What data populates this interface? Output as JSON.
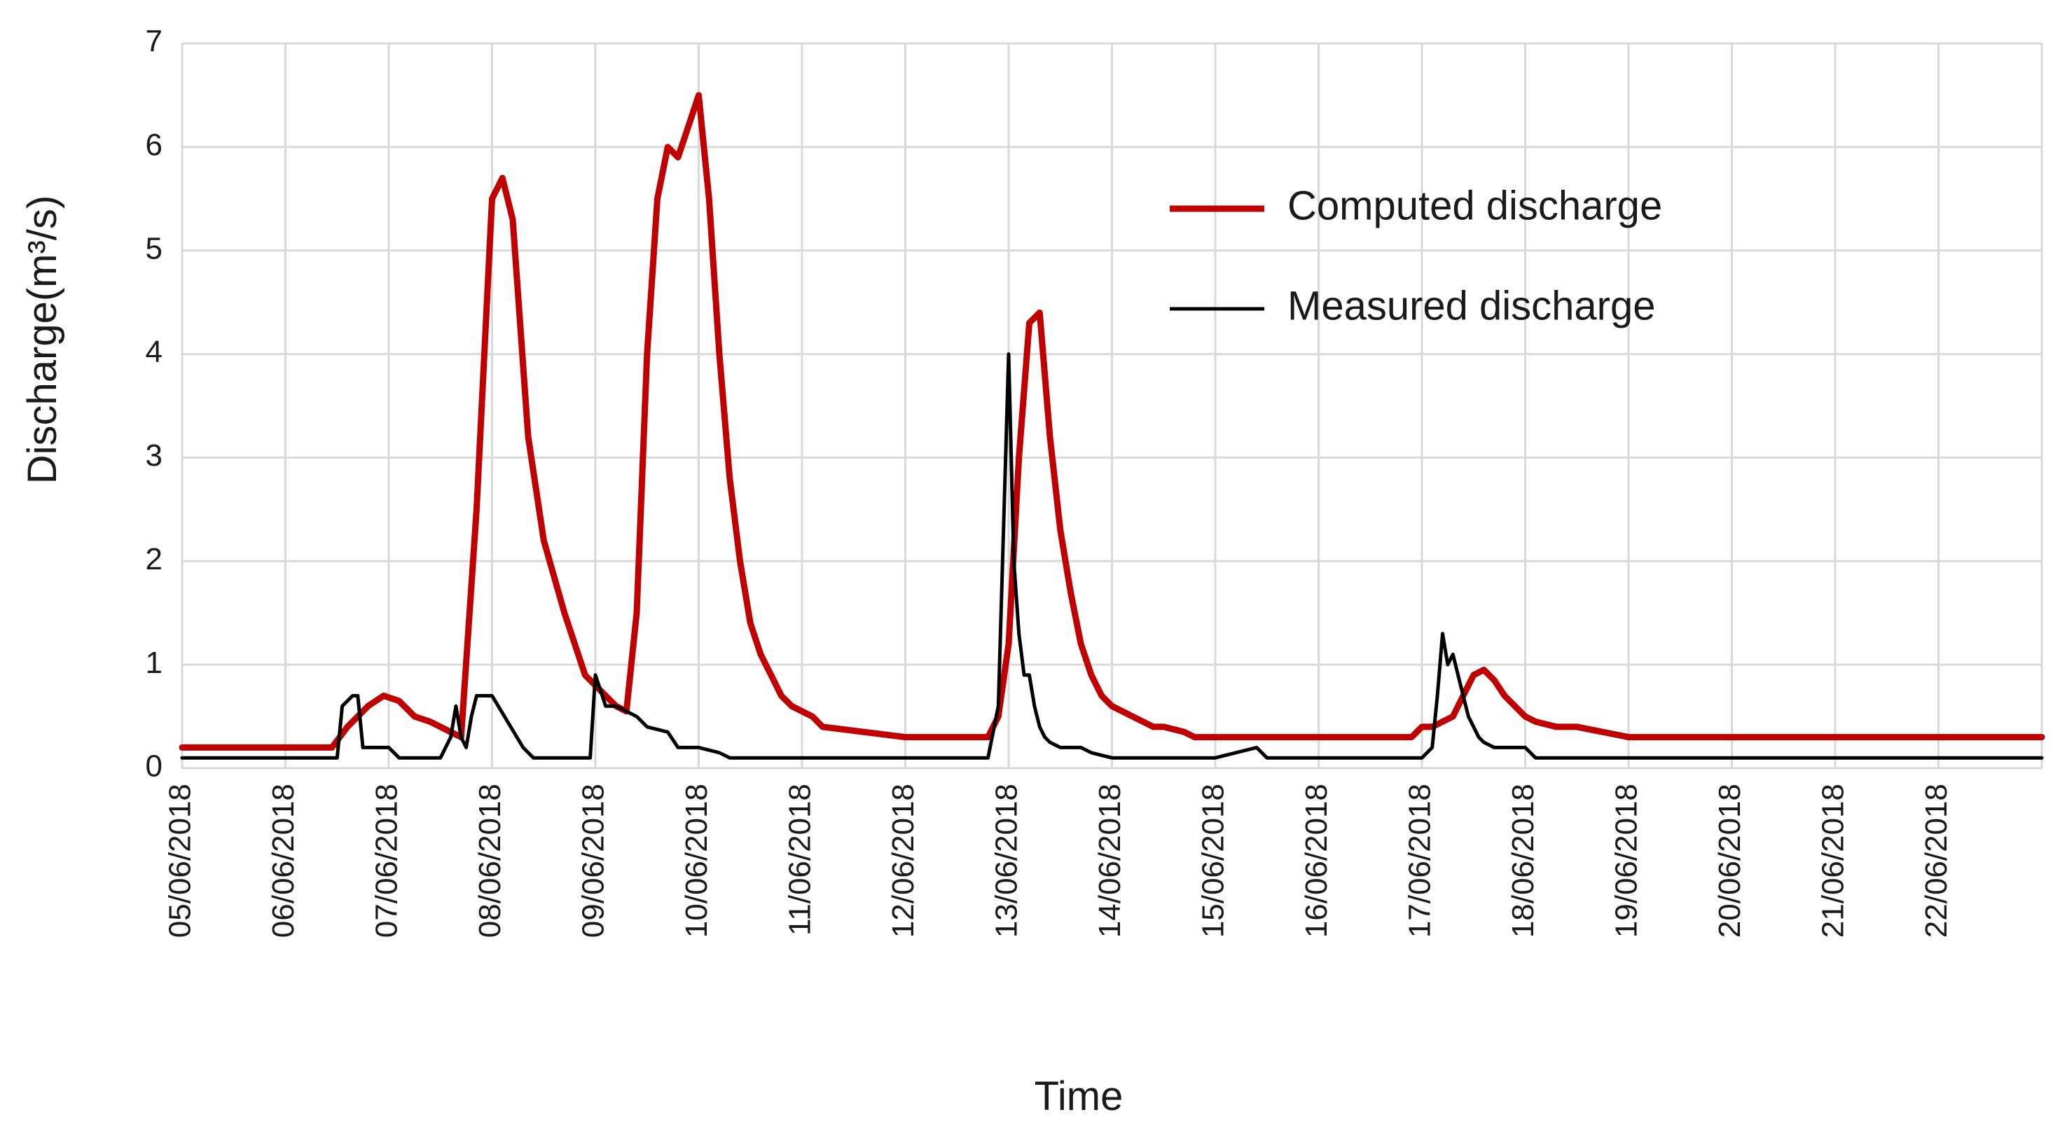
{
  "chart_data": {
    "type": "line",
    "xlabel": "Time",
    "ylabel": "Discharge(m³/s)",
    "ylim": [
      0,
      7
    ],
    "yticks": [
      0,
      1,
      2,
      3,
      4,
      5,
      6,
      7
    ],
    "x_tick_labels": [
      "05/06/2018",
      "06/06/2018",
      "07/06/2018",
      "08/06/2018",
      "09/06/2018",
      "10/06/2018",
      "11/06/2018",
      "12/06/2018",
      "13/06/2018",
      "14/06/2018",
      "15/06/2018",
      "16/06/2018",
      "17/06/2018",
      "18/06/2018",
      "19/06/2018",
      "20/06/2018",
      "21/06/2018",
      "22/06/2018"
    ],
    "x_unit": "days since 05/06/2018",
    "xlim": [
      0,
      18
    ],
    "grid": true,
    "legend_position": "upper-right inside plot",
    "series": [
      {
        "name": "Computed discharge",
        "color": "#c00000",
        "x": [
          0,
          1.45,
          1.6,
          1.8,
          1.95,
          2.1,
          2.25,
          2.4,
          2.5,
          2.6,
          2.7,
          2.85,
          3.0,
          3.1,
          3.2,
          3.35,
          3.5,
          3.7,
          3.9,
          4.0,
          4.1,
          4.2,
          4.3,
          4.4,
          4.5,
          4.6,
          4.7,
          4.8,
          4.9,
          5.0,
          5.1,
          5.2,
          5.3,
          5.4,
          5.5,
          5.6,
          5.7,
          5.8,
          5.9,
          6.1,
          6.2,
          7.0,
          7.8,
          7.9,
          8.0,
          8.1,
          8.2,
          8.3,
          8.4,
          8.5,
          8.6,
          8.7,
          8.8,
          8.9,
          9.0,
          9.1,
          9.2,
          9.3,
          9.4,
          9.5,
          9.7,
          9.8,
          10.0,
          11.0,
          11.9,
          12.0,
          12.1,
          12.3,
          12.4,
          12.5,
          12.6,
          12.7,
          12.8,
          12.9,
          13.0,
          13.1,
          13.3,
          13.5,
          14.0,
          15.0,
          16.0,
          17.0,
          18.0
        ],
        "values": [
          0.2,
          0.2,
          0.4,
          0.6,
          0.7,
          0.65,
          0.5,
          0.45,
          0.4,
          0.35,
          0.3,
          2.5,
          5.5,
          5.7,
          5.3,
          3.2,
          2.2,
          1.5,
          0.9,
          0.8,
          0.7,
          0.6,
          0.55,
          1.5,
          4.0,
          5.5,
          6.0,
          5.9,
          6.2,
          6.5,
          5.5,
          4.0,
          2.8,
          2.0,
          1.4,
          1.1,
          0.9,
          0.7,
          0.6,
          0.5,
          0.4,
          0.3,
          0.3,
          0.5,
          1.2,
          3.0,
          4.3,
          4.4,
          3.2,
          2.3,
          1.7,
          1.2,
          0.9,
          0.7,
          0.6,
          0.55,
          0.5,
          0.45,
          0.4,
          0.4,
          0.35,
          0.3,
          0.3,
          0.3,
          0.3,
          0.4,
          0.4,
          0.5,
          0.7,
          0.9,
          0.95,
          0.85,
          0.7,
          0.6,
          0.5,
          0.45,
          0.4,
          0.4,
          0.3,
          0.3,
          0.3,
          0.3,
          0.3
        ]
      },
      {
        "name": "Measured discharge",
        "color": "#000000",
        "x": [
          0,
          1.5,
          1.55,
          1.6,
          1.65,
          1.7,
          1.75,
          1.8,
          2.0,
          2.05,
          2.1,
          2.5,
          2.6,
          2.65,
          2.7,
          2.75,
          2.8,
          2.85,
          3.0,
          3.3,
          3.35,
          3.4,
          3.6,
          3.95,
          4.0,
          4.05,
          4.1,
          4.2,
          4.4,
          4.5,
          4.7,
          4.8,
          5.0,
          5.2,
          5.3,
          5.7,
          7.5,
          7.8,
          7.9,
          8.0,
          8.05,
          8.1,
          8.15,
          8.2,
          8.25,
          8.3,
          8.35,
          8.4,
          8.5,
          8.6,
          8.7,
          8.8,
          9.0,
          9.2,
          9.4,
          10.0,
          10.4,
          10.5,
          12.0,
          12.1,
          12.15,
          12.2,
          12.25,
          12.3,
          12.35,
          12.4,
          12.45,
          12.5,
          12.55,
          12.6,
          12.7,
          13.0,
          13.1,
          13.4,
          18.0
        ],
        "values": [
          0.1,
          0.1,
          0.6,
          0.65,
          0.7,
          0.7,
          0.2,
          0.2,
          0.2,
          0.15,
          0.1,
          0.1,
          0.3,
          0.6,
          0.3,
          0.2,
          0.5,
          0.7,
          0.7,
          0.2,
          0.15,
          0.1,
          0.1,
          0.1,
          0.9,
          0.75,
          0.6,
          0.6,
          0.5,
          0.4,
          0.35,
          0.2,
          0.2,
          0.15,
          0.1,
          0.1,
          0.1,
          0.1,
          0.6,
          4.0,
          2.0,
          1.3,
          0.9,
          0.9,
          0.6,
          0.4,
          0.3,
          0.25,
          0.2,
          0.2,
          0.2,
          0.15,
          0.1,
          0.1,
          0.1,
          0.1,
          0.2,
          0.1,
          0.1,
          0.2,
          0.7,
          1.3,
          1.0,
          1.1,
          0.9,
          0.7,
          0.5,
          0.4,
          0.3,
          0.25,
          0.2,
          0.2,
          0.1,
          0.1,
          0.1
        ]
      }
    ]
  }
}
